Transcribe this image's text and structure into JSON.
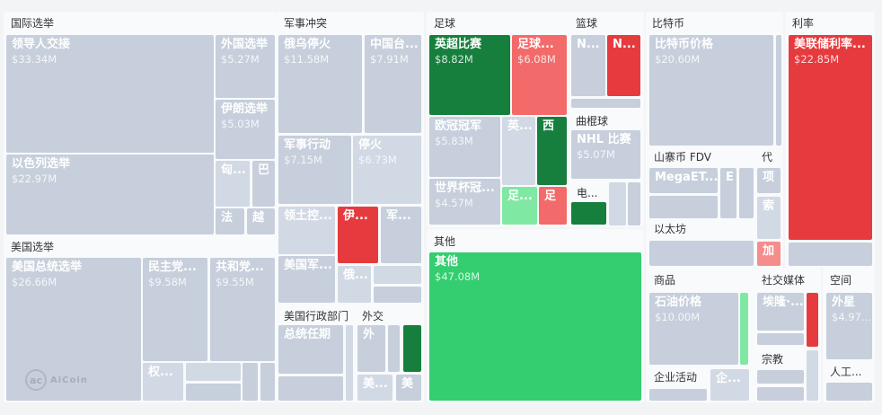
{
  "chart_data": {
    "type": "treemap",
    "colors": {
      "neutral": "#c6cfdb",
      "neutral_light": "#d1d9e4",
      "dark_green": "#167f3d",
      "green": "#34cd6f",
      "light_green": "#7fe8a3",
      "red": "#e63b3e",
      "pink": "#f26a69",
      "light_pink": "#f48d8c"
    },
    "groups": [
      "国际选举",
      "美国选举",
      "军事冲突",
      "美国行政部门",
      "外交",
      "足球",
      "篮球",
      "曲棍球",
      "其他",
      "比特币",
      "山寨币 FDV",
      "以太坊",
      "代",
      "利率",
      "商品",
      "企业活动",
      "社交媒体",
      "宗教",
      "空间",
      "人工...",
      "电..."
    ],
    "tiles": [
      {
        "label": "领导人交接",
        "value": "$33.34M",
        "color": "neutral"
      },
      {
        "label": "以色列选举",
        "value": "$22.97M",
        "color": "neutral"
      },
      {
        "label": "外国选举",
        "value": "$5.27M",
        "color": "neutral"
      },
      {
        "label": "伊朗选举",
        "value": "$5.03M",
        "color": "neutral"
      },
      {
        "label": "匈...",
        "value": "",
        "color": "neutral_light"
      },
      {
        "label": "巴",
        "value": "",
        "color": "neutral"
      },
      {
        "label": "法",
        "value": "",
        "color": "neutral"
      },
      {
        "label": "越",
        "value": "",
        "color": "neutral"
      },
      {
        "label": "美国总统选举",
        "value": "$26.66M",
        "color": "neutral"
      },
      {
        "label": "民主党...",
        "value": "$9.58M",
        "color": "neutral"
      },
      {
        "label": "共和党...",
        "value": "$9.55M",
        "color": "neutral"
      },
      {
        "label": "权...",
        "value": "",
        "color": "neutral_light"
      },
      {
        "label": "",
        "value": "",
        "color": "neutral_light"
      },
      {
        "label": "",
        "value": "",
        "color": "neutral"
      },
      {
        "label": "",
        "value": "",
        "color": "neutral"
      },
      {
        "label": "",
        "value": "",
        "color": "neutral"
      },
      {
        "label": "俄乌停火",
        "value": "$11.58M",
        "color": "neutral"
      },
      {
        "label": "中国台...",
        "value": "$7.91M",
        "color": "neutral"
      },
      {
        "label": "军事行动",
        "value": "$7.15M",
        "color": "neutral"
      },
      {
        "label": "停火",
        "value": "$6.73M",
        "color": "neutral_light"
      },
      {
        "label": "领土控...",
        "value": "",
        "color": "neutral_light"
      },
      {
        "label": "伊...",
        "value": "",
        "color": "red"
      },
      {
        "label": "军...",
        "value": "",
        "color": "neutral"
      },
      {
        "label": "美国军...",
        "value": "",
        "color": "neutral"
      },
      {
        "label": "俄...",
        "value": "",
        "color": "neutral_light"
      },
      {
        "label": "",
        "value": "",
        "color": "neutral_light"
      },
      {
        "label": "",
        "value": "",
        "color": "neutral"
      },
      {
        "label": "总统任期",
        "value": "",
        "color": "neutral"
      },
      {
        "label": "",
        "value": "",
        "color": "neutral"
      },
      {
        "label": "",
        "value": "",
        "color": "neutral_light"
      },
      {
        "label": "外",
        "value": "",
        "color": "neutral"
      },
      {
        "label": "",
        "value": "",
        "color": "neutral"
      },
      {
        "label": "",
        "value": "",
        "color": "dark_green"
      },
      {
        "label": "美...",
        "value": "",
        "color": "neutral_light"
      },
      {
        "label": "美",
        "value": "",
        "color": "neutral"
      },
      {
        "label": "英超比赛",
        "value": "$8.82M",
        "color": "dark_green"
      },
      {
        "label": "足球...",
        "value": "$6.08M",
        "color": "pink"
      },
      {
        "label": "欧冠冠军",
        "value": "$5.83M",
        "color": "neutral"
      },
      {
        "label": "英...",
        "value": "",
        "color": "neutral_light"
      },
      {
        "label": "西",
        "value": "",
        "color": "dark_green"
      },
      {
        "label": "世界杯冠...",
        "value": "$4.57M",
        "color": "neutral"
      },
      {
        "label": "足...",
        "value": "",
        "color": "light_green"
      },
      {
        "label": "足",
        "value": "",
        "color": "pink"
      },
      {
        "label": "N...",
        "value": "",
        "color": "neutral"
      },
      {
        "label": "N...",
        "value": "",
        "color": "red"
      },
      {
        "label": "",
        "value": "",
        "color": "neutral"
      },
      {
        "label": "NHL 比赛",
        "value": "$5.07M",
        "color": "neutral"
      },
      {
        "label": "",
        "value": "",
        "color": "dark_green"
      },
      {
        "label": "",
        "value": "",
        "color": "neutral_light"
      },
      {
        "label": "",
        "value": "",
        "color": "neutral"
      },
      {
        "label": "其他",
        "value": "$47.08M",
        "color": "green"
      },
      {
        "label": "比特币价格",
        "value": "$20.60M",
        "color": "neutral"
      },
      {
        "label": "",
        "value": "",
        "color": "neutral"
      },
      {
        "label": "MegaET...",
        "value": "",
        "color": "neutral"
      },
      {
        "label": "",
        "value": "",
        "color": "neutral"
      },
      {
        "label": "E",
        "value": "",
        "color": "neutral"
      },
      {
        "label": "",
        "value": "",
        "color": "neutral"
      },
      {
        "label": "",
        "value": "",
        "color": "neutral"
      },
      {
        "label": "项",
        "value": "",
        "color": "neutral"
      },
      {
        "label": "索",
        "value": "",
        "color": "neutral_light"
      },
      {
        "label": "加",
        "value": "",
        "color": "light_pink"
      },
      {
        "label": "美联储利率...",
        "value": "$22.85M",
        "color": "red"
      },
      {
        "label": "",
        "value": "",
        "color": "neutral"
      },
      {
        "label": "石油价格",
        "value": "$10.00M",
        "color": "neutral"
      },
      {
        "label": "",
        "value": "",
        "color": "light_green"
      },
      {
        "label": "",
        "value": "",
        "color": "neutral"
      },
      {
        "label": "企...",
        "value": "",
        "color": "neutral_light"
      },
      {
        "label": "埃隆·...",
        "value": "",
        "color": "neutral"
      },
      {
        "label": "",
        "value": "",
        "color": "neutral"
      },
      {
        "label": "",
        "value": "",
        "color": "red"
      },
      {
        "label": "",
        "value": "",
        "color": "neutral"
      },
      {
        "label": "",
        "value": "",
        "color": "neutral"
      },
      {
        "label": "",
        "value": "",
        "color": "neutral_light"
      },
      {
        "label": "外星",
        "value": "$4.97...",
        "color": "neutral"
      },
      {
        "label": "",
        "value": "",
        "color": "neutral"
      }
    ]
  },
  "watermark": {
    "brand": "AiCoin"
  }
}
